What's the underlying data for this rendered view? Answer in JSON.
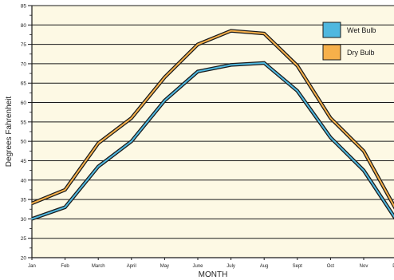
{
  "chart_data": {
    "type": "line",
    "xlabel": "MONTH",
    "ylabel": "Degrees Fahrenheit",
    "categories": [
      "Jan",
      "Feb",
      "March",
      "April",
      "May",
      "June",
      "July",
      "Aug",
      "Sept",
      "Oct",
      "Nov",
      "Dec"
    ],
    "ylim": [
      20,
      85
    ],
    "ytick_step": 5,
    "grid": true,
    "legend_position": "top-right",
    "series": [
      {
        "name": "Wet Bulb",
        "color": "#4fb8df",
        "outline": "#1a1a1a",
        "values": [
          30,
          33,
          43.5,
          50,
          60.5,
          68,
          69.7,
          70.2,
          63,
          51,
          42.5,
          29.5
        ]
      },
      {
        "name": "Dry Bulb",
        "color": "#f6b04a",
        "outline": "#1a1a1a",
        "values": [
          34,
          37.5,
          49.5,
          56,
          66.5,
          75,
          78.5,
          77.8,
          69.5,
          56,
          47.5,
          32
        ]
      }
    ],
    "colors": {
      "plot_background": "#fdf9e4",
      "grid": "#1a1a1a"
    }
  }
}
